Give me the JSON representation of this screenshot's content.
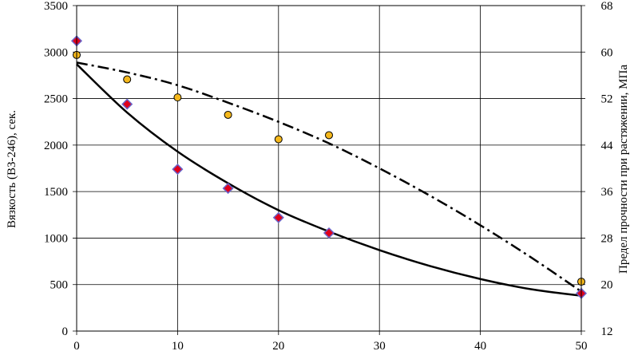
{
  "chart_data": {
    "type": "scatter",
    "title": "",
    "xlabel": "",
    "ylabel": "Вязкость (ВЗ-246), сек.",
    "y2label": "Предел прочности при растяжении, МПа",
    "xlim": [
      0,
      50
    ],
    "ylim": [
      0,
      3500
    ],
    "y2lim": [
      12,
      68
    ],
    "x_ticks": [
      "0",
      "10",
      "20",
      "30",
      "40",
      "50"
    ],
    "y_ticks": [
      "0",
      "500",
      "1000",
      "1500",
      "2000",
      "2500",
      "3000",
      "3500"
    ],
    "y2_ticks": [
      "12",
      "20",
      "28",
      "36",
      "44",
      "52",
      "60",
      "68"
    ],
    "grid": true,
    "series": [
      {
        "axis": "left",
        "marker": "diamond",
        "color": "#e0001b",
        "edge_color": "#6a63c8",
        "x": [
          0,
          5,
          10,
          15,
          20,
          25,
          50
        ],
        "y": [
          3120,
          2440,
          1740,
          1535,
          1220,
          1055,
          405
        ]
      },
      {
        "axis": "right",
        "marker": "circle",
        "color": "#f5b81c",
        "edge_color": "#000000",
        "x": [
          0,
          5,
          10,
          15,
          20,
          25,
          50
        ],
        "y": [
          59.5,
          55.3,
          52.2,
          49.2,
          45.0,
          45.7,
          20.5
        ]
      }
    ],
    "trendlines": [
      {
        "axis": "left",
        "style": "solid",
        "x": [
          0,
          5,
          10,
          15,
          20,
          25,
          30,
          35,
          40,
          45,
          50
        ],
        "y": [
          2870,
          2350,
          1930,
          1590,
          1300,
          1070,
          870,
          700,
          560,
          450,
          380
        ]
      },
      {
        "axis": "right",
        "style": "dash-dot",
        "x": [
          0,
          5,
          10,
          15,
          20,
          25,
          30,
          35,
          40,
          45,
          50
        ],
        "y": [
          58.2,
          56.5,
          54.3,
          51.3,
          48.0,
          44.3,
          40.0,
          35.3,
          30.2,
          24.7,
          18.8
        ]
      }
    ]
  }
}
